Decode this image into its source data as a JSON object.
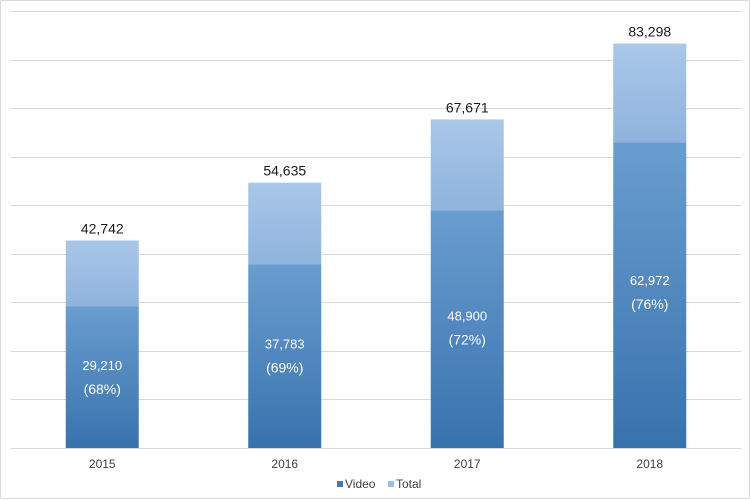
{
  "chart_data": {
    "type": "bar",
    "stacked": true,
    "title": "",
    "xlabel": "",
    "ylabel": "",
    "categories": [
      "2015",
      "2016",
      "2017",
      "2018"
    ],
    "ylim": [
      0,
      90000
    ],
    "grid": true,
    "series": [
      {
        "name": "Video",
        "values": [
          29210,
          37783,
          48900,
          62972
        ],
        "color": "#3d7ab8"
      },
      {
        "name": "Total",
        "values": [
          42742,
          54635,
          67671,
          83298
        ],
        "color": "#9dbfe3"
      }
    ],
    "total_labels": [
      "42,742",
      "54,635",
      "67,671",
      "83,298"
    ],
    "video_labels": [
      "29,210",
      "37,783",
      "48,900",
      "62,972"
    ],
    "share_labels": [
      "(68%)",
      "(69%)",
      "(72%)",
      "(76%)"
    ],
    "legend": {
      "position": "bottom",
      "items": [
        {
          "label": "Video",
          "color": "#3d7ab8"
        },
        {
          "label": "Total",
          "color": "#9dbfe3"
        }
      ]
    }
  }
}
